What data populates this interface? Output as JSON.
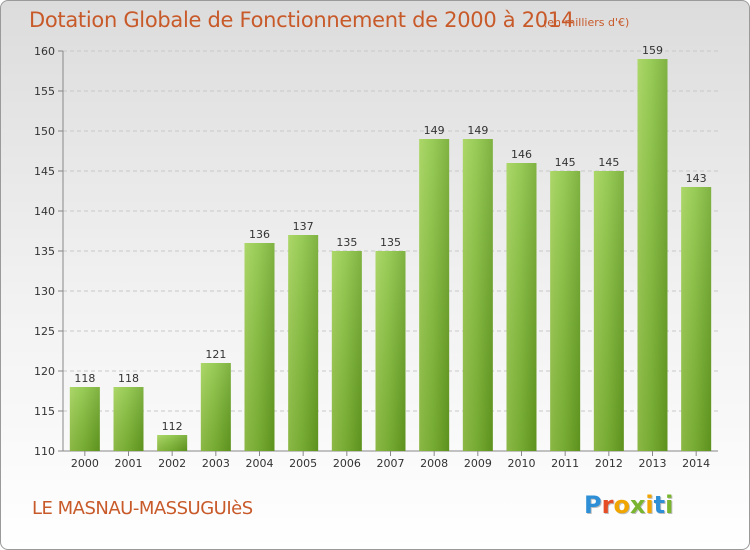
{
  "header": {
    "title": "Dotation Globale de Fonctionnement de 2000 à 2014",
    "unit_note": "(en milliers d'€)"
  },
  "footer": {
    "place_name": "LE MASNAU-MASSUGUIèS",
    "logo_text": "Proxiti",
    "logo_colors": [
      "#2e8fd6",
      "#e44d26",
      "#f0a500",
      "#7ab530",
      "#f0a500",
      "#2e8fd6",
      "#7ab530"
    ]
  },
  "chart_data": {
    "type": "bar",
    "categories": [
      "2000",
      "2001",
      "2002",
      "2003",
      "2004",
      "2005",
      "2006",
      "2007",
      "2008",
      "2009",
      "2010",
      "2011",
      "2012",
      "2013",
      "2014"
    ],
    "values": [
      118,
      118,
      112,
      121,
      136,
      137,
      135,
      135,
      149,
      149,
      146,
      145,
      145,
      159,
      143
    ],
    "ylim": [
      110,
      160
    ],
    "yticks": [
      110,
      115,
      120,
      125,
      130,
      135,
      140,
      145,
      150,
      155,
      160
    ],
    "grid": true,
    "bar_color": "#7ab82e",
    "bar_color_dark": "#5f9a1c",
    "bar_color_light": "#9ed04f"
  }
}
